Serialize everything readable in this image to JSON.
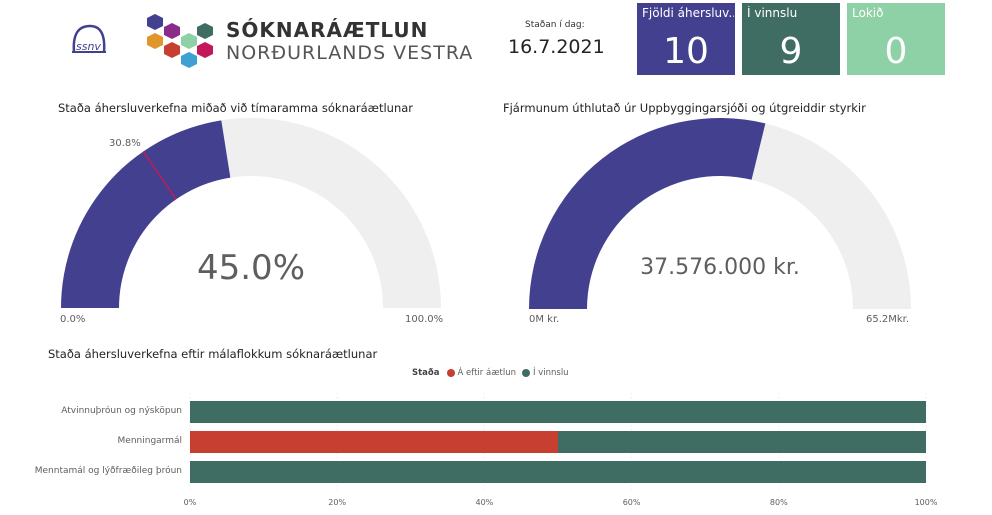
{
  "header": {
    "logo_org": "ssnv",
    "logo_title": "SÓKNARÁÆTLUN",
    "logo_subtitle": "NORÐURLANDS VESTRA",
    "date_label": "Staðan í dag:",
    "date_value": "16.7.2021"
  },
  "kpis": [
    {
      "label": "Fjöldi áhersluv...",
      "value": "10",
      "color": "#43418f"
    },
    {
      "label": "Í vinnslu",
      "value": "9",
      "color": "#3f6d64"
    },
    {
      "label": "Lokið",
      "value": "0",
      "color": "#8ed1a6"
    }
  ],
  "gauge1": {
    "title": "Staða áhersluverkefna miðað við tímaramma sóknaráætlunar",
    "value_label": "45.0%",
    "value": 45.0,
    "target": 30.8,
    "target_label": "30.8%",
    "min_label": "0.0%",
    "max_label": "100.0%",
    "min": 0,
    "max": 100,
    "fill": "#43418f",
    "track": "#f0efef",
    "target_color": "#c2185b"
  },
  "gauge2": {
    "title": "Fjármunum úthlutað úr Uppbyggingarsjóði og útgreiddir styrkir",
    "value_label": "37.576.000 kr.",
    "value": 37.576,
    "min_label": "0M kr.",
    "max_label": "65.2Mkr.",
    "min": 0,
    "max": 65.2,
    "fill": "#43418f",
    "track": "#f0efef"
  },
  "chart_data": {
    "type": "bar",
    "orientation": "horizontal-stacked-100",
    "title": "Staða áhersluverkefna eftir málaflokkum sóknaráætlunar",
    "legend_title": "Staða",
    "legend_position": "top",
    "categories": [
      "Atvinnuþróun og nýsköpun",
      "Menningarmál",
      "Menntamál og lýðfræðileg þróun"
    ],
    "series": [
      {
        "name": "Á eftir áætlun",
        "color": "#c63f31",
        "values": [
          0,
          50,
          0
        ]
      },
      {
        "name": "Í vinnslu",
        "color": "#3f6d64",
        "values": [
          100,
          50,
          100
        ]
      }
    ],
    "xticks": [
      "0%",
      "20%",
      "40%",
      "60%",
      "80%",
      "100%"
    ],
    "xlim": [
      0,
      100
    ],
    "grid": true
  }
}
